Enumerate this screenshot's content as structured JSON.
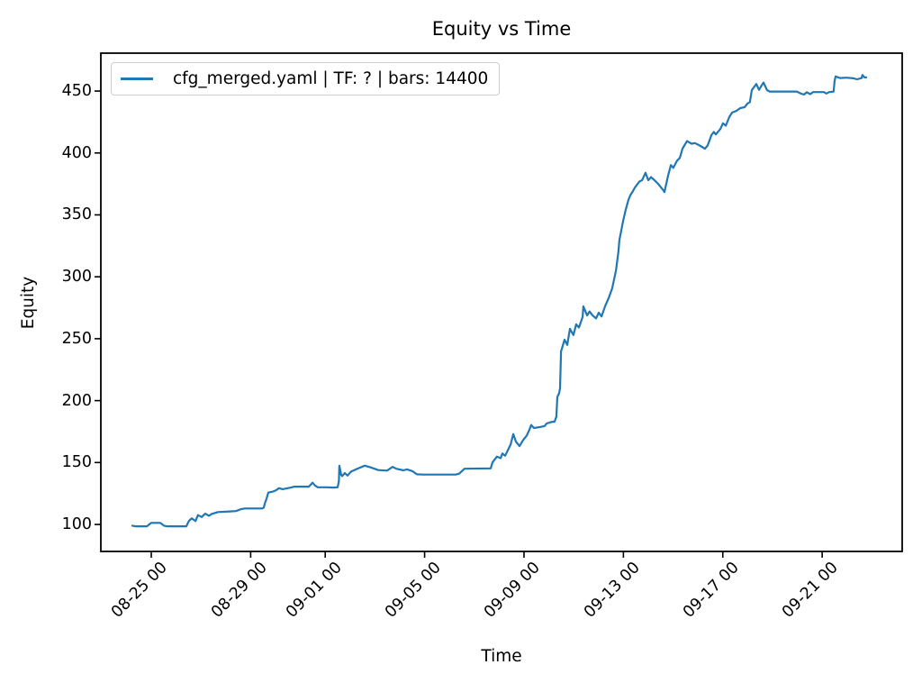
{
  "figure": {
    "background_color": "#ffffff",
    "text_color": "#000000"
  },
  "chart_data": {
    "type": "line",
    "title": "Equity vs Time",
    "xlabel": "Time",
    "ylabel": "Equity",
    "grid": false,
    "legend_position": "upper left",
    "x_axis": {
      "unit": "days relative to tick 08-25 00",
      "tick_labels": [
        "08-25 00",
        "08-29 00",
        "09-01 00",
        "09-05 00",
        "09-09 00",
        "09-13 00",
        "09-17 00",
        "09-21 00"
      ],
      "tick_offsets_days": [
        0,
        4,
        7,
        11,
        15,
        19,
        23,
        27
      ],
      "range_days": [
        -2.03,
        30.22
      ]
    },
    "y_axis": {
      "tick_values": [
        100,
        150,
        200,
        250,
        300,
        350,
        400,
        450
      ],
      "range": [
        78.2,
        480.6
      ]
    },
    "series": [
      {
        "name": "cfg_merged.yaml | TF: ? | bars: 14400",
        "color": "#1f77b4",
        "line_width": 2.2,
        "points": [
          [
            -0.76,
            99.0
          ],
          [
            -0.65,
            98.5
          ],
          [
            -0.18,
            98.5
          ],
          [
            0.0,
            101.3
          ],
          [
            0.36,
            101.3
          ],
          [
            0.51,
            99.0
          ],
          [
            0.62,
            98.5
          ],
          [
            1.41,
            98.5
          ],
          [
            1.52,
            103.0
          ],
          [
            1.63,
            105.0
          ],
          [
            1.78,
            102.7
          ],
          [
            1.88,
            107.5
          ],
          [
            2.03,
            106.0
          ],
          [
            2.17,
            108.7
          ],
          [
            2.32,
            107.0
          ],
          [
            2.43,
            108.5
          ],
          [
            2.68,
            110.0
          ],
          [
            3.15,
            110.5
          ],
          [
            3.41,
            110.8
          ],
          [
            3.62,
            112.4
          ],
          [
            3.77,
            112.9
          ],
          [
            4.46,
            112.9
          ],
          [
            4.53,
            113.6
          ],
          [
            4.57,
            117.0
          ],
          [
            4.64,
            121.0
          ],
          [
            4.71,
            125.7
          ],
          [
            4.89,
            126.5
          ],
          [
            5.0,
            127.4
          ],
          [
            5.14,
            129.3
          ],
          [
            5.29,
            128.5
          ],
          [
            5.62,
            129.8
          ],
          [
            5.76,
            130.5
          ],
          [
            6.34,
            130.5
          ],
          [
            6.49,
            133.7
          ],
          [
            6.59,
            131.5
          ],
          [
            6.7,
            130.0
          ],
          [
            7.07,
            130.0
          ],
          [
            7.32,
            129.8
          ],
          [
            7.5,
            130.0
          ],
          [
            7.55,
            135.0
          ],
          [
            7.57,
            147.5
          ],
          [
            7.64,
            140.0
          ],
          [
            7.68,
            139.0
          ],
          [
            7.79,
            141.5
          ],
          [
            7.9,
            139.5
          ],
          [
            8.04,
            142.7
          ],
          [
            8.3,
            145.1
          ],
          [
            8.59,
            147.5
          ],
          [
            8.84,
            146.0
          ],
          [
            9.13,
            143.9
          ],
          [
            9.49,
            143.5
          ],
          [
            9.71,
            146.5
          ],
          [
            9.86,
            145.0
          ],
          [
            10.14,
            143.7
          ],
          [
            10.29,
            144.5
          ],
          [
            10.51,
            143.0
          ],
          [
            10.69,
            140.5
          ],
          [
            10.94,
            140.3
          ],
          [
            12.25,
            140.3
          ],
          [
            12.39,
            141.0
          ],
          [
            12.61,
            145.0
          ],
          [
            13.66,
            145.3
          ],
          [
            13.73,
            150.0
          ],
          [
            13.91,
            154.8
          ],
          [
            14.06,
            153.5
          ],
          [
            14.13,
            157.3
          ],
          [
            14.24,
            155.5
          ],
          [
            14.46,
            164.5
          ],
          [
            14.57,
            173.0
          ],
          [
            14.67,
            167.0
          ],
          [
            14.82,
            163.3
          ],
          [
            14.96,
            168.0
          ],
          [
            15.11,
            171.8
          ],
          [
            15.22,
            176.6
          ],
          [
            15.29,
            180.3
          ],
          [
            15.4,
            177.9
          ],
          [
            15.65,
            178.7
          ],
          [
            15.83,
            179.5
          ],
          [
            15.91,
            181.5
          ],
          [
            16.09,
            182.7
          ],
          [
            16.23,
            183.0
          ],
          [
            16.3,
            187.0
          ],
          [
            16.34,
            203.0
          ],
          [
            16.41,
            205.8
          ],
          [
            16.45,
            210.0
          ],
          [
            16.49,
            239.7
          ],
          [
            16.63,
            249.2
          ],
          [
            16.74,
            245.0
          ],
          [
            16.85,
            258.0
          ],
          [
            16.99,
            253.0
          ],
          [
            17.1,
            261.6
          ],
          [
            17.21,
            259.0
          ],
          [
            17.36,
            267.6
          ],
          [
            17.39,
            276.1
          ],
          [
            17.54,
            268.8
          ],
          [
            17.64,
            272.0
          ],
          [
            17.75,
            269.0
          ],
          [
            17.9,
            266.4
          ],
          [
            18.01,
            271.0
          ],
          [
            18.12,
            268.0
          ],
          [
            18.26,
            276.0
          ],
          [
            18.41,
            283.0
          ],
          [
            18.55,
            290.7
          ],
          [
            18.7,
            305.0
          ],
          [
            18.8,
            320.0
          ],
          [
            18.84,
            329.5
          ],
          [
            18.99,
            345.2
          ],
          [
            19.09,
            353.8
          ],
          [
            19.2,
            362.0
          ],
          [
            19.28,
            365.9
          ],
          [
            19.38,
            369.0
          ],
          [
            19.46,
            372.0
          ],
          [
            19.64,
            376.8
          ],
          [
            19.75,
            378.0
          ],
          [
            19.89,
            384.0
          ],
          [
            20.0,
            378.0
          ],
          [
            20.11,
            380.5
          ],
          [
            20.25,
            378.0
          ],
          [
            20.4,
            375.0
          ],
          [
            20.62,
            369.5
          ],
          [
            20.65,
            368.4
          ],
          [
            20.8,
            381.7
          ],
          [
            20.91,
            390.2
          ],
          [
            21.01,
            388.0
          ],
          [
            21.16,
            393.8
          ],
          [
            21.27,
            396.0
          ],
          [
            21.38,
            403.5
          ],
          [
            21.56,
            409.6
          ],
          [
            21.74,
            407.5
          ],
          [
            21.88,
            408.0
          ],
          [
            22.07,
            406.0
          ],
          [
            22.28,
            403.5
          ],
          [
            22.39,
            406.0
          ],
          [
            22.54,
            414.4
          ],
          [
            22.64,
            417.0
          ],
          [
            22.72,
            415.0
          ],
          [
            22.9,
            419.3
          ],
          [
            23.01,
            424.0
          ],
          [
            23.12,
            422.0
          ],
          [
            23.26,
            428.9
          ],
          [
            23.37,
            432.6
          ],
          [
            23.55,
            434.0
          ],
          [
            23.7,
            436.2
          ],
          [
            23.88,
            437.0
          ],
          [
            23.99,
            439.9
          ],
          [
            24.09,
            441.0
          ],
          [
            24.17,
            450.8
          ],
          [
            24.35,
            455.7
          ],
          [
            24.46,
            451.0
          ],
          [
            24.6,
            455.7
          ],
          [
            24.64,
            456.9
          ],
          [
            24.78,
            450.8
          ],
          [
            24.89,
            449.6
          ],
          [
            25.98,
            449.6
          ],
          [
            26.16,
            447.8
          ],
          [
            26.27,
            447.2
          ],
          [
            26.38,
            449.0
          ],
          [
            26.52,
            447.5
          ],
          [
            26.63,
            449.2
          ],
          [
            27.07,
            449.2
          ],
          [
            27.17,
            448.0
          ],
          [
            27.28,
            449.2
          ],
          [
            27.46,
            449.5
          ],
          [
            27.5,
            458.0
          ],
          [
            27.54,
            461.8
          ],
          [
            27.72,
            460.5
          ],
          [
            27.97,
            460.8
          ],
          [
            28.26,
            460.3
          ],
          [
            28.41,
            459.5
          ],
          [
            28.59,
            460.5
          ],
          [
            28.62,
            463.0
          ],
          [
            28.7,
            461.0
          ],
          [
            28.77,
            461.0
          ]
        ]
      }
    ]
  }
}
